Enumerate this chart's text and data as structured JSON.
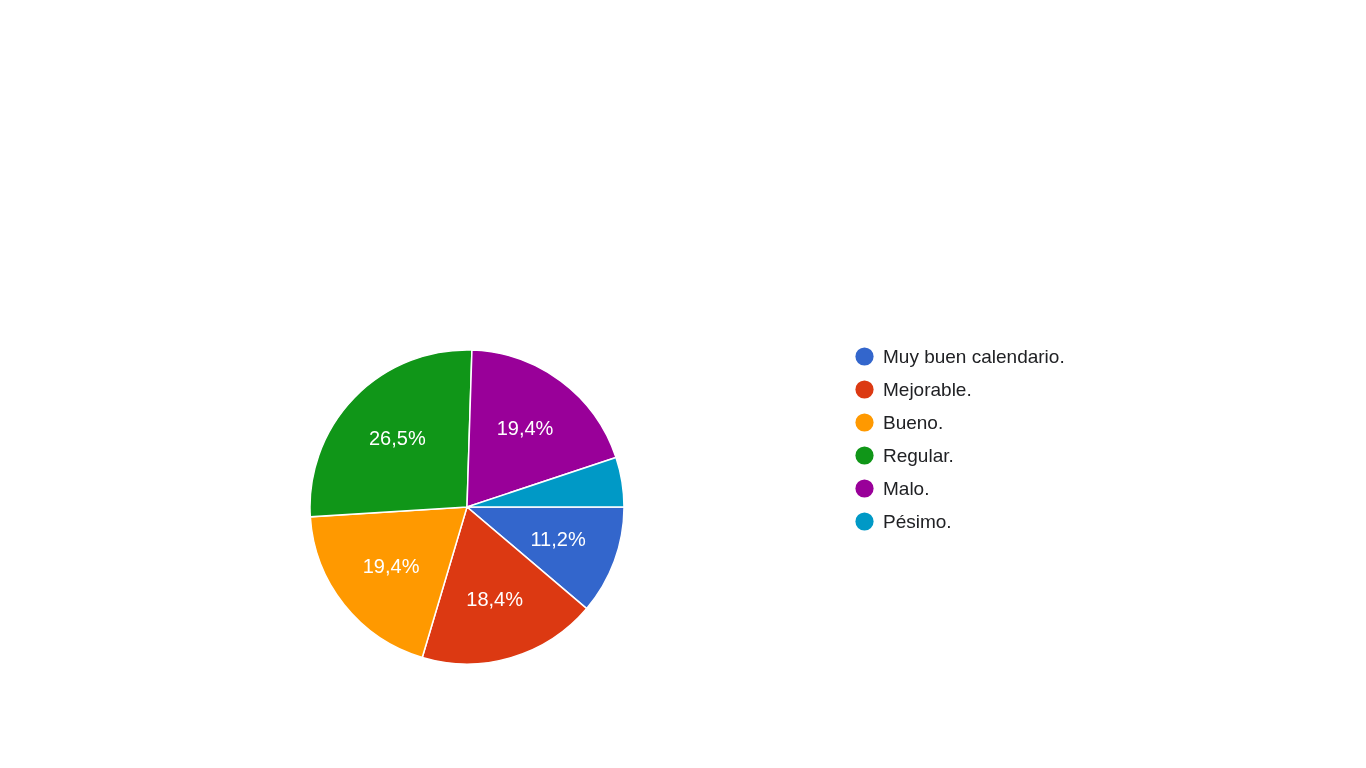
{
  "chart_data": {
    "type": "pie",
    "categories": [
      "Muy buen calendario.",
      "Mejorable.",
      "Bueno.",
      "Regular.",
      "Malo.",
      "Pésimo."
    ],
    "values": [
      11.2,
      18.4,
      19.4,
      26.5,
      19.4,
      5.1
    ],
    "colors": [
      "#3366cc",
      "#dc3912",
      "#ff9900",
      "#109618",
      "#990099",
      "#0099c6"
    ],
    "value_labels": [
      "11,2%",
      "18,4%",
      "19,4%",
      "26,5%",
      "19,4%",
      null
    ],
    "legend": "right"
  }
}
